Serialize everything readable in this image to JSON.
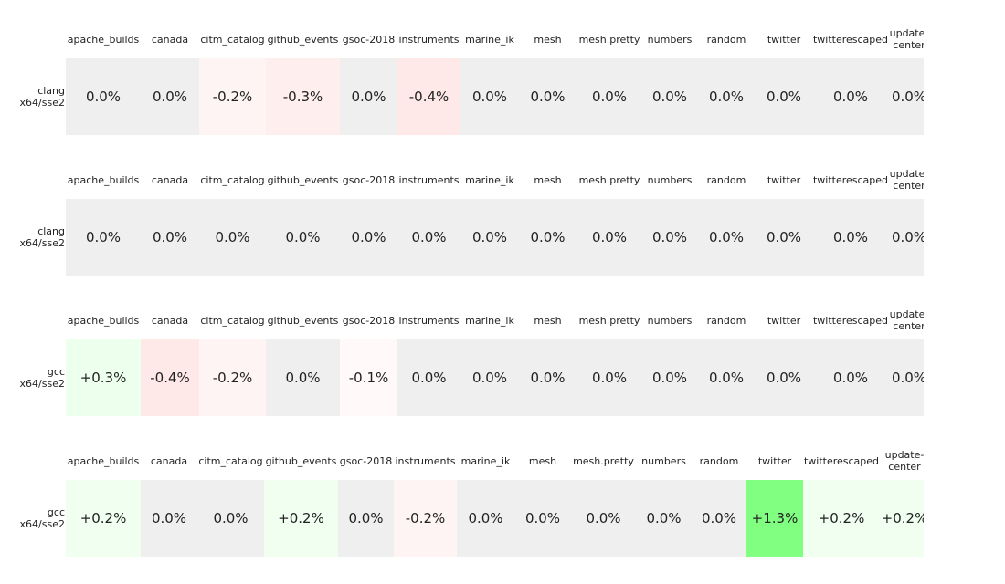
{
  "colors": {
    "neutral": "#efefef",
    "positive": "#80ff80",
    "negative": "#ff8080"
  },
  "chart_data": [
    {
      "type": "heatmap",
      "row_label": [
        "clang",
        "x64/sse2"
      ],
      "categories": [
        "apache_builds",
        "canada",
        "citm_catalog",
        "github_events",
        "gsoc-2018",
        "instruments",
        "marine_ik",
        "mesh",
        "mesh.pretty",
        "numbers",
        "random",
        "twitter",
        "twitterescaped",
        "update-center"
      ],
      "header_labels": [
        "apache_builds",
        "canada",
        "citm_catalog",
        "github_events",
        "gsoc-2018",
        "instruments",
        "marine_ik",
        "mesh",
        "mesh.pretty",
        "numbers",
        "random",
        "twitter",
        "twitterescaped",
        "update-\ncenter"
      ],
      "values": [
        0.0,
        0.0,
        -0.2,
        -0.3,
        0.0,
        -0.4,
        0.0,
        0.0,
        0.0,
        0.0,
        0.0,
        0.0,
        0.0,
        0.0
      ],
      "labels": [
        "0.0%",
        "0.0%",
        "-0.2%",
        "-0.3%",
        "0.0%",
        "-0.4%",
        "0.0%",
        "0.0%",
        "0.0%",
        "0.0%",
        "0.0%",
        "0.0%",
        "0.0%",
        "0.0%"
      ]
    },
    {
      "type": "heatmap",
      "row_label": [
        "clang",
        "x64/sse2"
      ],
      "categories": [
        "apache_builds",
        "canada",
        "citm_catalog",
        "github_events",
        "gsoc-2018",
        "instruments",
        "marine_ik",
        "mesh",
        "mesh.pretty",
        "numbers",
        "random",
        "twitter",
        "twitterescaped",
        "update-center"
      ],
      "header_labels": [
        "apache_builds",
        "canada",
        "citm_catalog",
        "github_events",
        "gsoc-2018",
        "instruments",
        "marine_ik",
        "mesh",
        "mesh.pretty",
        "numbers",
        "random",
        "twitter",
        "twitterescaped",
        "update-\ncenter"
      ],
      "values": [
        0.0,
        0.0,
        0.0,
        0.0,
        0.0,
        0.0,
        0.0,
        0.0,
        0.0,
        0.0,
        0.0,
        0.0,
        0.0,
        0.0
      ],
      "labels": [
        "0.0%",
        "0.0%",
        "0.0%",
        "0.0%",
        "0.0%",
        "0.0%",
        "0.0%",
        "0.0%",
        "0.0%",
        "0.0%",
        "0.0%",
        "0.0%",
        "0.0%",
        "0.0%"
      ]
    },
    {
      "type": "heatmap",
      "row_label": [
        "gcc",
        "x64/sse2"
      ],
      "categories": [
        "apache_builds",
        "canada",
        "citm_catalog",
        "github_events",
        "gsoc-2018",
        "instruments",
        "marine_ik",
        "mesh",
        "mesh.pretty",
        "numbers",
        "random",
        "twitter",
        "twitterescaped",
        "update-center"
      ],
      "header_labels": [
        "apache_builds",
        "canada",
        "citm_catalog",
        "github_events",
        "gsoc-2018",
        "instruments",
        "marine_ik",
        "mesh",
        "mesh.pretty",
        "numbers",
        "random",
        "twitter",
        "twitterescaped",
        "update-\ncenter"
      ],
      "values": [
        0.3,
        -0.4,
        -0.2,
        0.0,
        -0.1,
        0.0,
        0.0,
        0.0,
        0.0,
        0.0,
        0.0,
        0.0,
        0.0,
        0.0
      ],
      "labels": [
        "+0.3%",
        "-0.4%",
        "-0.2%",
        "0.0%",
        "-0.1%",
        "0.0%",
        "0.0%",
        "0.0%",
        "0.0%",
        "0.0%",
        "0.0%",
        "0.0%",
        "0.0%",
        "0.0%"
      ]
    },
    {
      "type": "heatmap",
      "row_label": [
        "gcc",
        "x64/sse2"
      ],
      "categories": [
        "apache_builds",
        "canada",
        "citm_catalog",
        "github_events",
        "gsoc-2018",
        "instruments",
        "marine_ik",
        "mesh",
        "mesh.pretty",
        "numbers",
        "random",
        "twitter",
        "twitterescaped",
        "update-center"
      ],
      "header_labels": [
        "apache_builds",
        "canada",
        "citm_catalog",
        "github_events",
        "gsoc-2018",
        "instruments",
        "marine_ik",
        "mesh",
        "mesh.pretty",
        "numbers",
        "random",
        "twitter",
        "twitterescaped",
        "update-\ncenter"
      ],
      "values": [
        0.2,
        0.0,
        0.0,
        0.2,
        0.0,
        -0.2,
        0.0,
        0.0,
        0.0,
        0.0,
        0.0,
        1.3,
        0.2,
        0.2
      ],
      "labels": [
        "+0.2%",
        "0.0%",
        "0.0%",
        "+0.2%",
        "0.0%",
        "-0.2%",
        "0.0%",
        "0.0%",
        "0.0%",
        "0.0%",
        "0.0%",
        "+1.3%",
        "+0.2%",
        "+0.2%"
      ]
    }
  ]
}
